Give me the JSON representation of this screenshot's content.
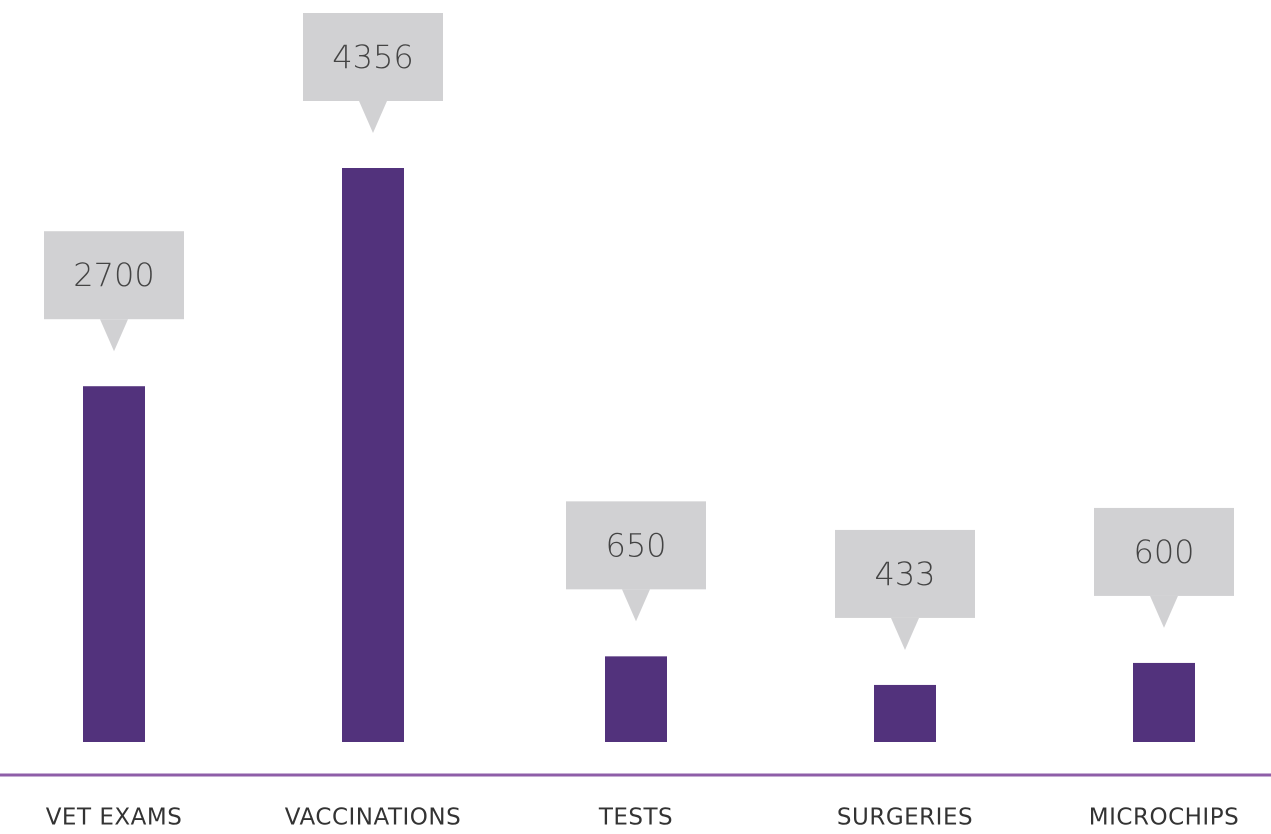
{
  "chart_data": {
    "type": "bar",
    "categories": [
      "VET EXAMS",
      "VACCINATIONS",
      "TESTS",
      "SURGERIES",
      "MICROCHIPS"
    ],
    "values": [
      2700,
      4356,
      650,
      433,
      600
    ],
    "color": "#52327c"
  }
}
